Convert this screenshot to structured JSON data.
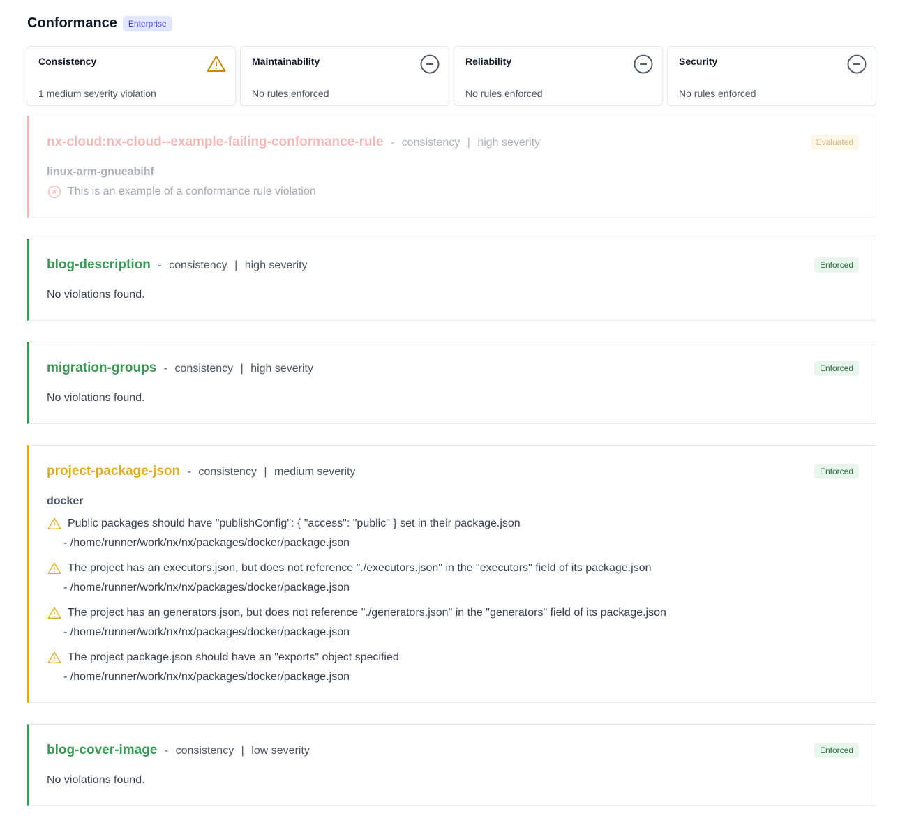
{
  "header": {
    "title": "Conformance",
    "badge": "Enterprise"
  },
  "colors": {
    "success": "#3a9a55",
    "warning": "#e4ab16",
    "error": "#e66565"
  },
  "cards": [
    {
      "name": "Consistency",
      "desc": "1 medium severity violation",
      "icon": "warning-icon"
    },
    {
      "name": "Maintainability",
      "desc": "No rules enforced",
      "icon": "minus-circle-icon"
    },
    {
      "name": "Reliability",
      "desc": "No rules enforced",
      "icon": "minus-circle-icon"
    },
    {
      "name": "Security",
      "desc": "No rules enforced",
      "icon": "minus-circle-icon"
    }
  ],
  "rules": [
    {
      "name": "nx-cloud:nx-cloud--example-failing-conformance-rule",
      "category": "consistency",
      "severity": "high severity",
      "status": "Evaluated",
      "project": "linux-arm-gnueabihf",
      "violation": "This is an example of a conformance rule violation"
    },
    {
      "name": "blog-description",
      "category": "consistency",
      "severity": "high severity",
      "status": "Enforced",
      "message": "No violations found."
    },
    {
      "name": "migration-groups",
      "category": "consistency",
      "severity": "high severity",
      "status": "Enforced",
      "message": "No violations found."
    },
    {
      "name": "project-package-json",
      "category": "consistency",
      "severity": "medium severity",
      "status": "Enforced",
      "project": "docker",
      "violations": [
        {
          "text": "Public packages should have \"publishConfig\": { \"access\": \"public\" } set in their package.json",
          "path": "- /home/runner/work/nx/nx/packages/docker/package.json"
        },
        {
          "text": "The project has an executors.json, but does not reference \"./executors.json\" in the \"executors\" field of its package.json",
          "path": "- /home/runner/work/nx/nx/packages/docker/package.json"
        },
        {
          "text": "The project has an generators.json, but does not reference \"./generators.json\" in the \"generators\" field of its package.json",
          "path": "- /home/runner/work/nx/nx/packages/docker/package.json"
        },
        {
          "text": "The project package.json should have an \"exports\" object specified",
          "path": "- /home/runner/work/nx/nx/packages/docker/package.json"
        }
      ]
    },
    {
      "name": "blog-cover-image",
      "category": "consistency",
      "severity": "low severity",
      "status": "Enforced",
      "message": "No violations found."
    }
  ],
  "separators": {
    "dash": "-",
    "pipe": "|"
  }
}
